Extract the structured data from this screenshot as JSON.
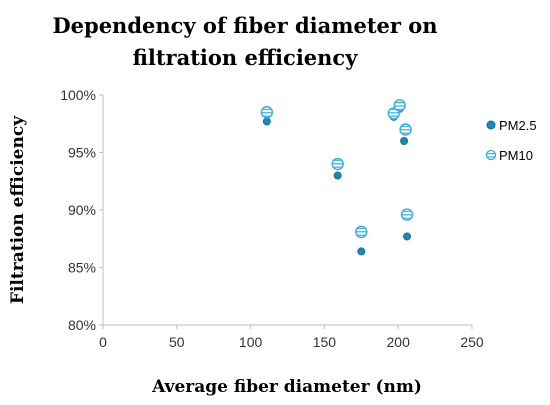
{
  "chart_data": {
    "type": "scatter",
    "title_lines": [
      "Dependency of fiber diameter on",
      "filtration efficiency"
    ],
    "xlabel": "Average fiber diameter (nm)",
    "ylabel": "Filtration efficiency",
    "xlim": [
      0,
      250
    ],
    "ylim": [
      80,
      100
    ],
    "x_ticks": [
      0,
      50,
      100,
      150,
      200,
      250
    ],
    "y_ticks": [
      80,
      85,
      90,
      95,
      100
    ],
    "y_tick_labels": [
      "80%",
      "85%",
      "90%",
      "95%",
      "100%"
    ],
    "grid": false,
    "legend_position": "right",
    "series": [
      {
        "name": "PM2.5",
        "marker": "filled-circle",
        "color": "#1f86b5",
        "points": [
          {
            "x": 111,
            "y": 97.7
          },
          {
            "x": 159,
            "y": 93.0
          },
          {
            "x": 175,
            "y": 86.4
          },
          {
            "x": 197,
            "y": 98.1
          },
          {
            "x": 201,
            "y": 98.8
          },
          {
            "x": 204,
            "y": 96.0
          },
          {
            "x": 206,
            "y": 87.7
          }
        ]
      },
      {
        "name": "PM10",
        "marker": "striped-circle",
        "color": "#36aee0",
        "points": [
          {
            "x": 111,
            "y": 98.5
          },
          {
            "x": 159,
            "y": 94.0
          },
          {
            "x": 175,
            "y": 88.1
          },
          {
            "x": 197,
            "y": 98.4
          },
          {
            "x": 201,
            "y": 99.1
          },
          {
            "x": 205,
            "y": 97.0
          },
          {
            "x": 206,
            "y": 89.6
          }
        ]
      }
    ]
  }
}
